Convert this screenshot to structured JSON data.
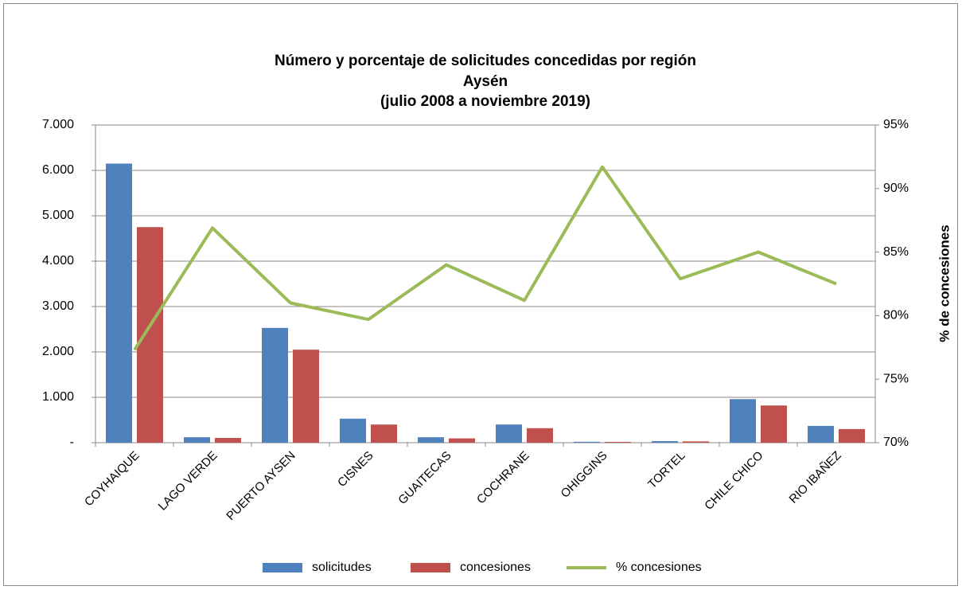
{
  "chart_data": {
    "type": "bar",
    "title": [
      "Número y porcentaje de solicitudes concedidas por región",
      "Aysén",
      "(julio 2008 a noviembre 2019)"
    ],
    "y2label": "% de concesiones",
    "categories": [
      "COYHAIQUE",
      "LAGO VERDE",
      "PUERTO AYSEN",
      "CISNES",
      "GUAITECAS",
      "COCHRANE",
      "OHIGGINS",
      "TORTEL",
      "CHILE CHICO",
      "RIO IBAÑEZ"
    ],
    "series": [
      {
        "name": "solicitudes",
        "type": "bar",
        "color": "#4f81bd",
        "values": [
          6150,
          120,
          2530,
          530,
          120,
          400,
          20,
          35,
          960,
          370
        ]
      },
      {
        "name": "concesiones",
        "type": "bar",
        "color": "#c0504d",
        "values": [
          4750,
          105,
          2050,
          400,
          95,
          320,
          18,
          29,
          820,
          300
        ]
      },
      {
        "name": "% concesiones",
        "type": "line",
        "axis": "y2",
        "color": "#9bbb59",
        "values": [
          77.3,
          86.9,
          81.0,
          79.7,
          84.0,
          81.2,
          91.7,
          82.9,
          85.0,
          82.5
        ]
      }
    ],
    "ylim": [
      0,
      7000
    ],
    "yticks": [
      {
        "value": 0,
        "label": "-"
      },
      {
        "value": 1000,
        "label": "1.000"
      },
      {
        "value": 2000,
        "label": "2.000"
      },
      {
        "value": 3000,
        "label": "3.000"
      },
      {
        "value": 4000,
        "label": "4.000"
      },
      {
        "value": 5000,
        "label": "5.000"
      },
      {
        "value": 6000,
        "label": "6.000"
      },
      {
        "value": 7000,
        "label": "7.000"
      }
    ],
    "y2lim": [
      70,
      95
    ],
    "y2ticks": [
      {
        "value": 70,
        "label": "70%"
      },
      {
        "value": 75,
        "label": "75%"
      },
      {
        "value": 80,
        "label": "80%"
      },
      {
        "value": 85,
        "label": "85%"
      },
      {
        "value": 90,
        "label": "90%"
      },
      {
        "value": 95,
        "label": "95%"
      }
    ],
    "grid": true,
    "legend": "bottom"
  }
}
